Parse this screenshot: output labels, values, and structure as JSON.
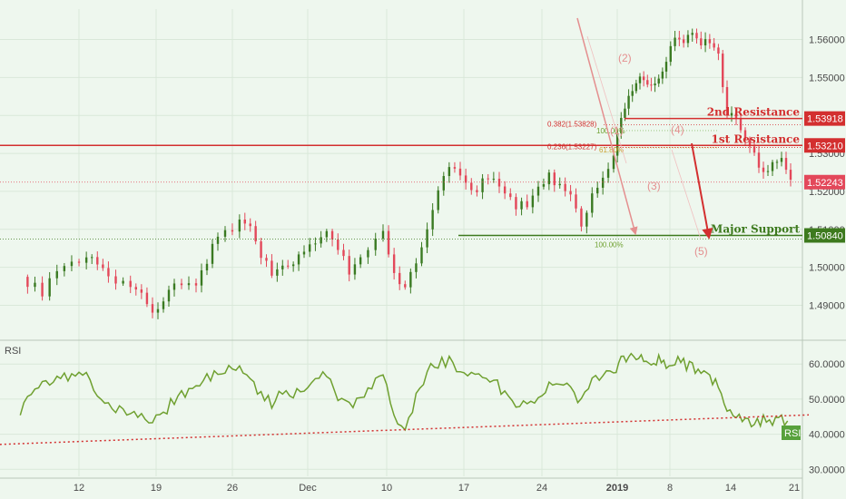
{
  "chart_data": [
    {
      "type": "candlestick",
      "title": "",
      "x_tick_labels": [
        "12",
        "19",
        "26",
        "Dec",
        "10",
        "17",
        "24",
        "2019",
        "8",
        "14",
        "21"
      ],
      "y_ticks": [
        "1.49000",
        "1.50000",
        "1.51000",
        "1.52000",
        "1.53000",
        "1.54000",
        "1.55000",
        "1.56000"
      ],
      "ylim": [
        1.482,
        1.568
      ],
      "last_price": "1.52243",
      "levels": [
        {
          "name": "2nd Resistance",
          "value": "1.53918",
          "color": "#d32f2f"
        },
        {
          "name": "1st Resistance",
          "value": "1.53210",
          "color": "#d32f2f"
        },
        {
          "name": "Major Support",
          "value": "1.50840",
          "color": "#3d7a1e"
        }
      ],
      "fib_labels": [
        "0.382(1.53828)",
        "0.236(1.53227)",
        "100.00%",
        "61.80%",
        "100.00%"
      ],
      "wave_labels": [
        "(1)",
        "(2)",
        "(3)",
        "(4)",
        "(5)"
      ],
      "close_path": [
        [
          0,
          1.4975
        ],
        [
          2,
          1.4935
        ],
        [
          4,
          1.5005
        ],
        [
          6,
          1.5035
        ],
        [
          7,
          1.5005
        ],
        [
          8,
          1.4975
        ],
        [
          10,
          1.4955
        ],
        [
          11,
          1.4945
        ],
        [
          12,
          1.488
        ],
        [
          13,
          1.49
        ],
        [
          14,
          1.496
        ],
        [
          16,
          1.4945
        ],
        [
          17,
          1.502
        ],
        [
          18,
          1.508
        ],
        [
          20,
          1.512
        ],
        [
          21,
          1.51
        ],
        [
          22,
          1.503
        ],
        [
          23,
          1.498
        ],
        [
          24,
          1.501
        ],
        [
          25,
          1.5005
        ],
        [
          26,
          1.504
        ],
        [
          27,
          1.5075
        ],
        [
          28,
          1.5095
        ],
        [
          29,
          1.505
        ],
        [
          30,
          1.499
        ],
        [
          31,
          1.503
        ],
        [
          33,
          1.509
        ],
        [
          34,
          1.4975
        ],
        [
          35,
          1.494
        ],
        [
          36,
          1.502
        ],
        [
          37,
          1.509
        ],
        [
          38,
          1.521
        ],
        [
          39,
          1.5265
        ],
        [
          40,
          1.5235
        ],
        [
          41,
          1.5195
        ],
        [
          42,
          1.5225
        ],
        [
          43,
          1.524
        ],
        [
          44,
          1.519
        ],
        [
          45,
          1.5165
        ],
        [
          46,
          1.516
        ],
        [
          47,
          1.52
        ],
        [
          48,
          1.524
        ],
        [
          49,
          1.5215
        ],
        [
          50,
          1.5195
        ],
        [
          51,
          1.5095
        ],
        [
          52,
          1.52
        ],
        [
          53,
          1.5225
        ],
        [
          54,
          1.53
        ],
        [
          55,
          1.5385
        ],
        [
          56,
          1.546
        ],
        [
          57,
          1.549
        ],
        [
          58,
          1.5505
        ],
        [
          59,
          1.5475
        ],
        [
          60,
          1.55
        ],
        [
          61,
          1.554
        ],
        [
          62,
          1.561
        ],
        [
          63,
          1.559
        ],
        [
          64,
          1.562
        ],
        [
          65,
          1.558
        ],
        [
          66,
          1.56
        ],
        [
          67,
          1.556
        ],
        [
          68,
          1.541
        ],
        [
          69,
          1.538
        ],
        [
          70,
          1.534
        ],
        [
          71,
          1.529
        ],
        [
          72,
          1.525
        ],
        [
          73,
          1.527
        ],
        [
          74,
          1.5285
        ],
        [
          75,
          1.5225
        ]
      ],
      "candle_wick": 0.002,
      "candle_colors": {
        "up": "#3a7a22",
        "down": "#e3485a"
      }
    },
    {
      "type": "line",
      "title": "RSI",
      "y_ticks": [
        "30.0000",
        "40.0000",
        "50.0000",
        "60.0000"
      ],
      "ylim": [
        28,
        66
      ],
      "last_value": "RSI",
      "rsi_path": [
        [
          0,
          47
        ],
        [
          2,
          55
        ],
        [
          4,
          56
        ],
        [
          6,
          58
        ],
        [
          7,
          52
        ],
        [
          8,
          48
        ],
        [
          10,
          46
        ],
        [
          11,
          45
        ],
        [
          12,
          43
        ],
        [
          13,
          46
        ],
        [
          14,
          50
        ],
        [
          16,
          53
        ],
        [
          17,
          56
        ],
        [
          18,
          58
        ],
        [
          20,
          60
        ],
        [
          21,
          56
        ],
        [
          22,
          51
        ],
        [
          23,
          49
        ],
        [
          24,
          52
        ],
        [
          25,
          51
        ],
        [
          26,
          53
        ],
        [
          27,
          55
        ],
        [
          28,
          57
        ],
        [
          29,
          50
        ],
        [
          30,
          48
        ],
        [
          31,
          50
        ],
        [
          33,
          57
        ],
        [
          34,
          45
        ],
        [
          35,
          41
        ],
        [
          36,
          51
        ],
        [
          37,
          58
        ],
        [
          38,
          60
        ],
        [
          39,
          61
        ],
        [
          40,
          58
        ],
        [
          41,
          57
        ],
        [
          42,
          55
        ],
        [
          43,
          56
        ],
        [
          44,
          51
        ],
        [
          45,
          49
        ],
        [
          46,
          48
        ],
        [
          47,
          50
        ],
        [
          48,
          55
        ],
        [
          49,
          54
        ],
        [
          50,
          53
        ],
        [
          51,
          49
        ],
        [
          52,
          55
        ],
        [
          53,
          57
        ],
        [
          54,
          58
        ],
        [
          55,
          61
        ],
        [
          56,
          62
        ],
        [
          57,
          61
        ],
        [
          58,
          62
        ],
        [
          59,
          60
        ],
        [
          60,
          61
        ],
        [
          61,
          60
        ],
        [
          62,
          61
        ],
        [
          63,
          60
        ],
        [
          64,
          59
        ],
        [
          65,
          57
        ],
        [
          66,
          56
        ],
        [
          67,
          54
        ],
        [
          68,
          48
        ],
        [
          69,
          46
        ],
        [
          70,
          44
        ],
        [
          71,
          43
        ],
        [
          72,
          44
        ],
        [
          73,
          43
        ],
        [
          74,
          44
        ],
        [
          75,
          42
        ]
      ],
      "trendline": [
        [
          -3,
          37.0
        ],
        [
          77,
          45.5
        ]
      ]
    }
  ],
  "colors": {
    "background": "#eef7ee",
    "grid": "#d9e8d9",
    "axis_text": "#4a4a4a",
    "resistance": "#d32f2f",
    "support": "#3d7a1e",
    "wave": "#e48f8f",
    "rsi_line": "#6fa030",
    "last_price_badge": "#e3485a",
    "rsi_badge": "#58a13c"
  }
}
